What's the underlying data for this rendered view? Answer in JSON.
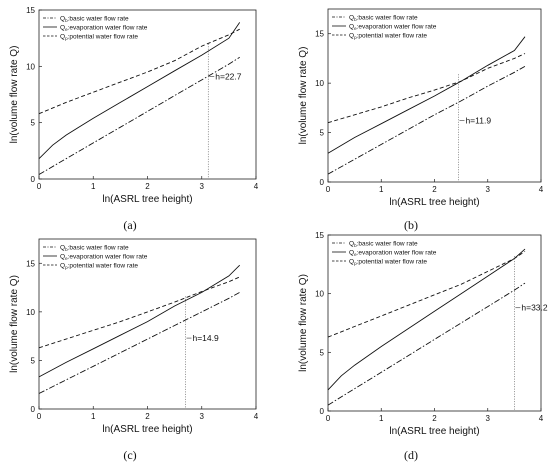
{
  "chart_data": [
    {
      "type": "line",
      "panel_label": "(a)",
      "xlabel": "ln(ASRL tree height)",
      "ylabel": "ln(volume flow rate Q)",
      "xlim": [
        0,
        4
      ],
      "ylim": [
        0,
        15
      ],
      "xticks": [
        0,
        1,
        2,
        3,
        4
      ],
      "yticks": [
        0,
        5,
        10,
        15
      ],
      "grid": false,
      "legend_position": "top-left",
      "series": [
        {
          "name": "Q",
          "sub": "b",
          "desc": ":basic water flow rate",
          "style": "dashdot",
          "x": [
            0,
            0.5,
            1,
            1.5,
            2,
            2.5,
            3,
            3.5,
            3.7
          ],
          "y": [
            0.4,
            1.8,
            3.2,
            4.6,
            6.0,
            7.4,
            8.8,
            10.2,
            10.8
          ]
        },
        {
          "name": "Q",
          "sub": "e",
          "desc": ":evaporation water flow rate",
          "style": "solid",
          "x": [
            0,
            0.25,
            0.5,
            1,
            1.5,
            2,
            2.5,
            3,
            3.5,
            3.7
          ],
          "y": [
            1.8,
            3.0,
            3.9,
            5.4,
            6.8,
            8.2,
            9.6,
            11.0,
            12.5,
            13.9
          ]
        },
        {
          "name": "Q",
          "sub": "p",
          "desc": ":potential water flow rate",
          "style": "dashed",
          "x": [
            0,
            0.5,
            1,
            1.5,
            2,
            2.5,
            3,
            3.5,
            3.7
          ],
          "y": [
            5.8,
            6.8,
            7.7,
            8.6,
            9.5,
            10.5,
            11.8,
            12.8,
            13.3
          ]
        }
      ],
      "annotation": {
        "text": "h=22.7",
        "x": 3.12,
        "y": 12.0,
        "label_y": 9.1
      }
    },
    {
      "type": "line",
      "panel_label": "(b)",
      "xlabel": "ln(ASRL tree height)",
      "ylabel": "ln(volume flow rate Q)",
      "xlim": [
        0,
        4
      ],
      "ylim": [
        0,
        17.5
      ],
      "xticks": [
        0,
        1,
        2,
        3,
        4
      ],
      "yticks": [
        0,
        5,
        10,
        15
      ],
      "grid": false,
      "legend_position": "top-left",
      "series": [
        {
          "name": "Q",
          "sub": "b",
          "desc": ":basic water flow rate",
          "style": "dashdot",
          "x": [
            0,
            0.5,
            1,
            1.5,
            2,
            2.5,
            3,
            3.5,
            3.7
          ],
          "y": [
            0.8,
            2.3,
            3.8,
            5.3,
            6.8,
            8.2,
            9.7,
            11.1,
            11.7
          ]
        },
        {
          "name": "Q",
          "sub": "e",
          "desc": ":evaporation water flow rate",
          "style": "solid",
          "x": [
            0,
            0.5,
            1,
            1.5,
            2,
            2.5,
            3,
            3.5,
            3.7
          ],
          "y": [
            2.9,
            4.5,
            5.9,
            7.3,
            8.7,
            10.2,
            11.8,
            13.3,
            14.7
          ]
        },
        {
          "name": "Q",
          "sub": "p",
          "desc": ":potential water flow rate",
          "style": "dashed",
          "x": [
            0,
            0.5,
            1,
            1.5,
            2,
            2.5,
            3,
            3.5,
            3.7
          ],
          "y": [
            6.0,
            6.8,
            7.6,
            8.5,
            9.3,
            10.2,
            11.5,
            12.5,
            13.0
          ]
        }
      ],
      "annotation": {
        "text": "h=11.9",
        "x": 2.45,
        "y": 10.9,
        "label_y": 6.2
      }
    },
    {
      "type": "line",
      "panel_label": "(c)",
      "xlabel": "ln(ASRL tree height)",
      "ylabel": "ln(volume flow rate Q)",
      "xlim": [
        0,
        4
      ],
      "ylim": [
        0,
        17.5
      ],
      "xticks": [
        0,
        1,
        2,
        3,
        4
      ],
      "yticks": [
        0,
        5,
        10,
        15
      ],
      "grid": false,
      "legend_position": "top-left",
      "series": [
        {
          "name": "Q",
          "sub": "b",
          "desc": ":basic water flow rate",
          "style": "dashdot",
          "x": [
            0,
            0.5,
            1,
            1.5,
            2,
            2.5,
            3,
            3.5,
            3.7
          ],
          "y": [
            1.6,
            3.0,
            4.4,
            5.8,
            7.2,
            8.6,
            10.0,
            11.4,
            12.0
          ]
        },
        {
          "name": "Q",
          "sub": "e",
          "desc": ":evaporation water flow rate",
          "style": "solid",
          "x": [
            0,
            0.5,
            1,
            1.5,
            2,
            2.5,
            3,
            3.5,
            3.7
          ],
          "y": [
            3.3,
            4.8,
            6.2,
            7.6,
            9.0,
            10.6,
            12.0,
            13.7,
            14.8
          ]
        },
        {
          "name": "Q",
          "sub": "p",
          "desc": ":potential water flow rate",
          "style": "dashed",
          "x": [
            0,
            0.5,
            1,
            1.5,
            2,
            2.5,
            3,
            3.5,
            3.7
          ],
          "y": [
            6.3,
            7.2,
            8.1,
            9.0,
            10.0,
            11.0,
            12.1,
            13.1,
            13.6
          ]
        }
      ],
      "annotation": {
        "text": "h=14.9",
        "x": 2.7,
        "y": 11.6,
        "label_y": 7.3
      }
    },
    {
      "type": "line",
      "panel_label": "(d)",
      "xlabel": "ln(ASRL tree height)",
      "ylabel": "ln(volume flow rate Q)",
      "xlim": [
        0,
        4
      ],
      "ylim": [
        0,
        15
      ],
      "xticks": [
        0,
        1,
        2,
        3,
        4
      ],
      "yticks": [
        0,
        5,
        10,
        15
      ],
      "grid": false,
      "legend_position": "top-left",
      "series": [
        {
          "name": "Q",
          "sub": "b",
          "desc": ":basic water flow rate",
          "style": "dashdot",
          "x": [
            0,
            0.5,
            1,
            1.5,
            2,
            2.5,
            3,
            3.5,
            3.7
          ],
          "y": [
            0.5,
            1.9,
            3.3,
            4.7,
            6.1,
            7.5,
            8.9,
            10.3,
            10.9
          ]
        },
        {
          "name": "Q",
          "sub": "e",
          "desc": ":evaporation water flow rate",
          "style": "solid",
          "x": [
            0,
            0.25,
            0.5,
            1,
            1.5,
            2,
            2.5,
            3,
            3.5,
            3.7
          ],
          "y": [
            1.8,
            3.0,
            3.9,
            5.5,
            7.0,
            8.5,
            10.0,
            11.5,
            13.0,
            13.8
          ]
        },
        {
          "name": "Q",
          "sub": "p",
          "desc": ":potential water flow rate",
          "style": "dashed",
          "x": [
            0,
            0.5,
            1,
            1.5,
            2,
            2.5,
            3,
            3.5,
            3.7
          ],
          "y": [
            6.3,
            7.2,
            8.1,
            9.0,
            9.9,
            10.8,
            11.9,
            13.0,
            13.6
          ]
        }
      ],
      "annotation": {
        "text": "h=33.2",
        "x": 3.5,
        "y": 13.2,
        "label_y": 8.8
      }
    }
  ]
}
